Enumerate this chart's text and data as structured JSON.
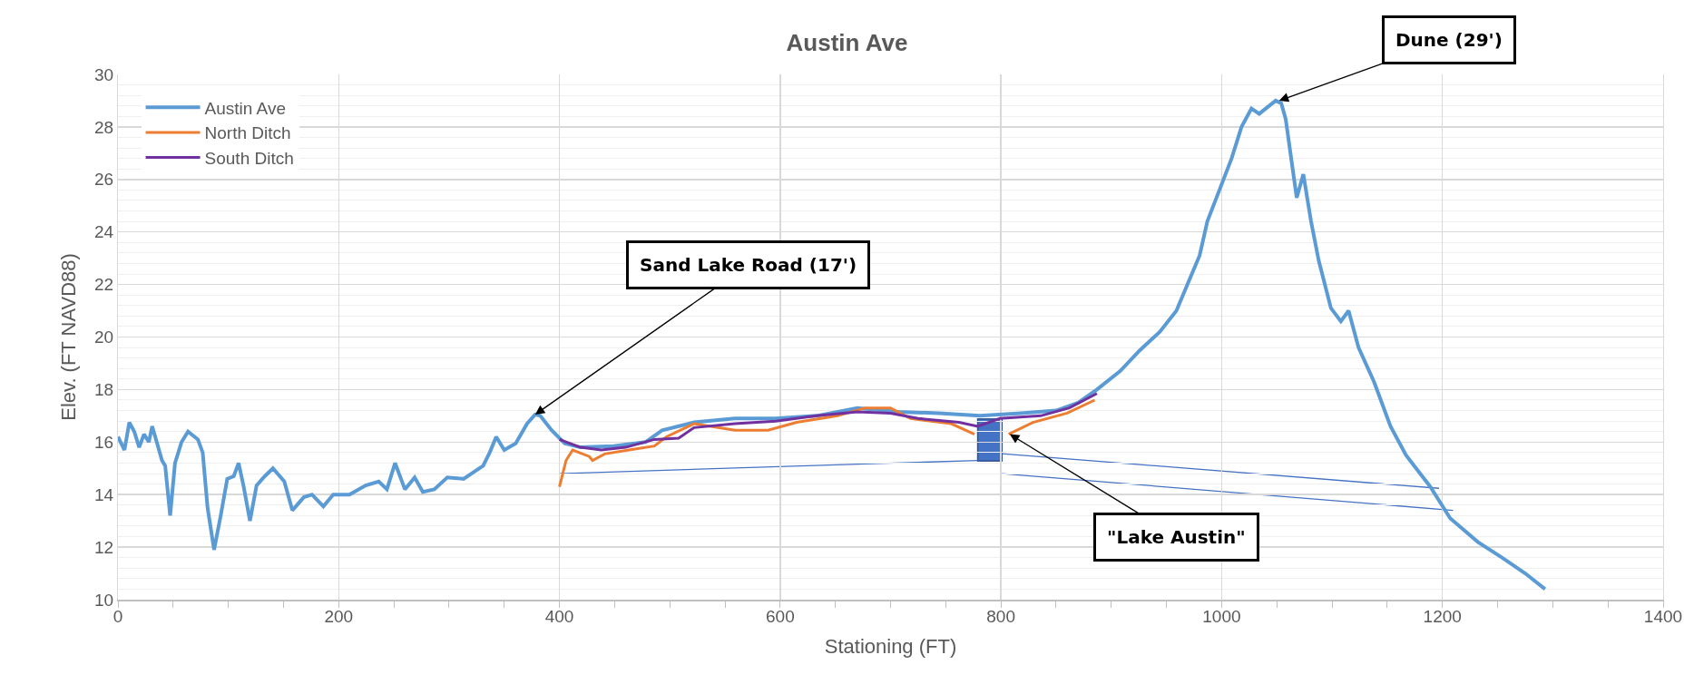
{
  "chart_data": {
    "type": "line",
    "title": "Austin Ave",
    "xlabel": "Stationing (FT)",
    "ylabel": "Elev. (FT NAVD88)",
    "xlim": [
      0,
      1400
    ],
    "xticks": [
      0,
      200,
      400,
      600,
      800,
      1000,
      1200,
      1400
    ],
    "ylim": [
      10,
      30
    ],
    "yticks": [
      10,
      12,
      14,
      16,
      18,
      20,
      22,
      24,
      26,
      28,
      30
    ],
    "grid": true,
    "legend": "top left",
    "line_style": "solid",
    "marker": "none",
    "annotations": [
      {
        "text": "Sand Lake Road (17')",
        "x": 378,
        "y": 17.05
      },
      {
        "text": "Dune (29')",
        "x": 1052,
        "y": 29
      },
      {
        "text": "\"Lake Austin\"",
        "x": 808,
        "y": 16.3
      }
    ],
    "series": [
      {
        "name": "Austin Ave",
        "color": "#5b9bd5",
        "x": [
          0,
          5.9,
          10.3,
          14.8,
          19.2,
          23.6,
          28,
          31,
          35.5,
          39.9,
          42.8,
          47.3,
          51.7,
          57.6,
          63.5,
          72.4,
          76.8,
          81.2,
          87.1,
          93.1,
          99,
          104.9,
          109.3,
          113.7,
          119.6,
          125.6,
          133,
          140.4,
          150.7,
          158,
          168.4,
          175.8,
          186.1,
          195,
          209.7,
          224.5,
          236.3,
          243.7,
          251.1,
          260,
          268.8,
          276.2,
          286.6,
          298.4,
          313.1,
          330.9,
          336.8,
          342.7,
          350,
          360.4,
          370.7,
          378,
          382.6,
          392.9,
          404.7,
          419,
          449,
          478,
          493,
          522,
          559,
          596,
          633,
          670,
          707,
          744,
          781,
          818,
          850,
          870,
          887,
          908,
          926,
          944,
          959,
          969,
          980,
          987,
          998,
          1009,
          1018,
          1027,
          1034,
          1049,
          1054,
          1058,
          1063,
          1068,
          1074,
          1081,
          1088,
          1099,
          1108,
          1115,
          1124,
          1138,
          1153,
          1167,
          1189,
          1207,
          1232,
          1254,
          1275,
          1293
        ],
        "values": [
          16.2,
          15.7,
          16.75,
          16.4,
          15.8,
          16.3,
          16.0,
          16.6,
          15.95,
          15.3,
          15.1,
          13.2,
          15.2,
          16.0,
          16.4,
          16.1,
          15.6,
          13.5,
          11.9,
          13.2,
          14.6,
          14.7,
          15.2,
          14.35,
          13.0,
          14.35,
          14.7,
          15.0,
          14.5,
          13.4,
          13.9,
          14.0,
          13.55,
          14.0,
          14.0,
          14.35,
          14.5,
          14.2,
          15.2,
          14.2,
          14.65,
          14.1,
          14.2,
          14.65,
          14.6,
          15.1,
          15.6,
          16.2,
          15.7,
          15.95,
          16.7,
          17.05,
          17.0,
          16.45,
          15.95,
          15.8,
          15.85,
          16.0,
          16.45,
          16.75,
          16.9,
          16.9,
          17.0,
          17.3,
          17.15,
          17.1,
          17.0,
          17.1,
          17.2,
          17.5,
          18.0,
          18.7,
          19.5,
          20.2,
          21.0,
          22.0,
          23.1,
          24.4,
          25.6,
          26.8,
          28.0,
          28.7,
          28.5,
          29.0,
          28.9,
          28.3,
          26.8,
          25.3,
          26.2,
          24.4,
          22.9,
          21.1,
          20.6,
          21.0,
          19.6,
          18.3,
          16.6,
          15.5,
          14.3,
          13.1,
          12.2,
          11.6,
          11.0,
          10.4
        ]
      },
      {
        "name": "North Ditch",
        "color": "#ed7d31",
        "x": [
          400,
          406,
          412,
          427,
          430,
          441,
          463,
          486,
          497,
          522,
          559,
          589,
          615,
          652,
          677,
          700,
          718,
          755,
          776,
          792,
          807,
          829,
          860,
          885
        ],
        "values": [
          14.3,
          15.3,
          15.7,
          15.45,
          15.3,
          15.55,
          15.7,
          15.85,
          16.2,
          16.7,
          16.45,
          16.45,
          16.75,
          17.0,
          17.3,
          17.3,
          16.9,
          16.7,
          16.3,
          null,
          16.3,
          16.75,
          17.1,
          17.6
        ]
      },
      {
        "name": "South Ditch",
        "color": "#7030a0",
        "x": [
          400,
          419,
          438,
          460,
          486,
          508,
          522,
          559,
          596,
          633,
          670,
          700,
          725,
          762,
          779,
          799,
          836,
          862,
          887
        ],
        "values": [
          16.1,
          15.8,
          15.7,
          15.8,
          16.1,
          16.15,
          16.55,
          16.7,
          16.8,
          17.0,
          17.15,
          17.1,
          16.9,
          16.75,
          16.6,
          16.9,
          17.0,
          17.3,
          17.85
        ]
      }
    ]
  }
}
